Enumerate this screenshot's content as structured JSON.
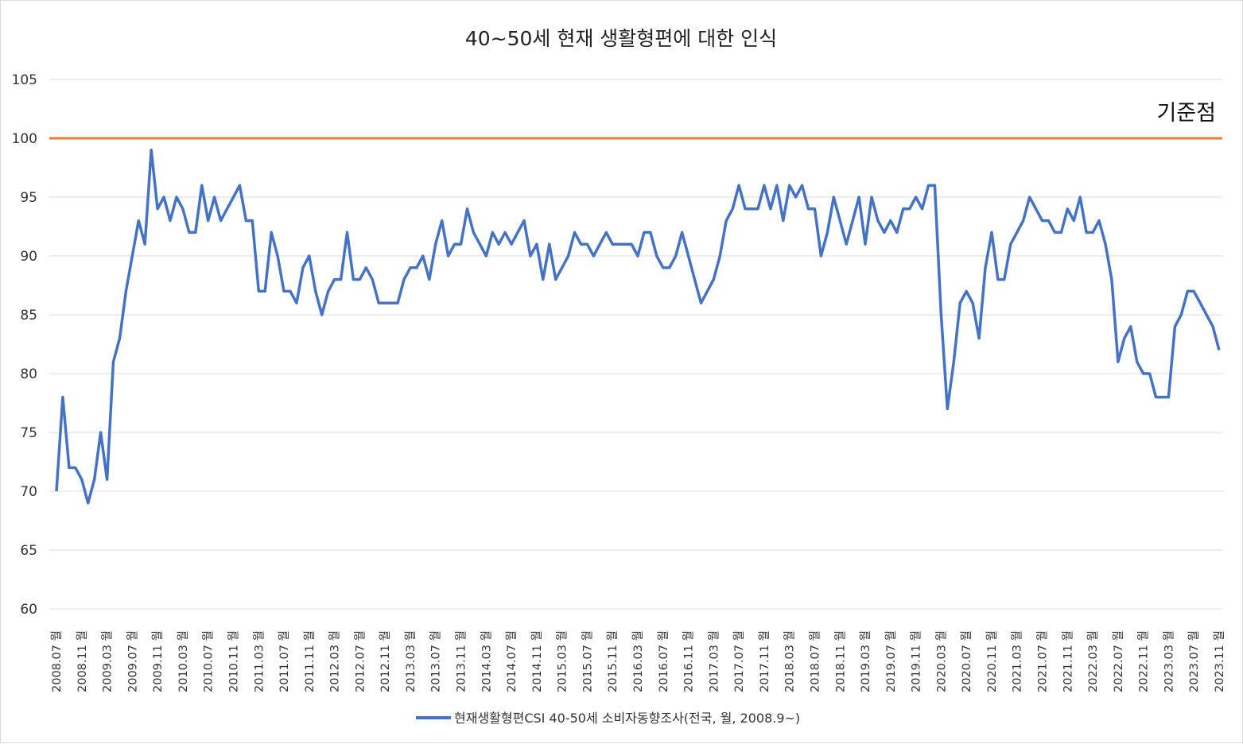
{
  "chart_data": {
    "type": "line",
    "title": "40~50세 현재 생활형편에 대한 인식",
    "ylim": [
      60,
      105
    ],
    "yticks": [
      60,
      65,
      70,
      75,
      80,
      85,
      90,
      95,
      100,
      105
    ],
    "grid": true,
    "legend_position": "bottom",
    "x_tick_labels": [
      "2008.07 월",
      "2008.11 월",
      "2009.03 월",
      "2009.07 월",
      "2009.11 월",
      "2010.03 월",
      "2010.07 월",
      "2010.11 월",
      "2011.03 월",
      "2011.07 월",
      "2011.11 월",
      "2012.03 월",
      "2012.07 월",
      "2012.11 월",
      "2013.03 월",
      "2013.07 월",
      "2013.11 월",
      "2014.03 월",
      "2014.07 월",
      "2014.11 월",
      "2015.03 월",
      "2015.07 월",
      "2015.11 월",
      "2016.03 월",
      "2016.07 월",
      "2016.11 월",
      "2017.03 월",
      "2017.07 월",
      "2017.11 월",
      "2018.03 월",
      "2018.07 월",
      "2018.11 월",
      "2019.03 월",
      "2019.07 월",
      "2019.11 월",
      "2020.03 월",
      "2020.07 월",
      "2020.11 월",
      "2021.03 월",
      "2021.07 월",
      "2021.11 월",
      "2022.03 월",
      "2022.07 월",
      "2022.11 월",
      "2023.03 월",
      "2023.07 월",
      "2023.11 월"
    ],
    "reference_line": {
      "value": 100,
      "label": "기준점",
      "color": "#ED7D31"
    },
    "series": [
      {
        "name": "현재생활형편CSI 40-50세 소비자동향조사(전국, 월, 2008.9~)",
        "color": "#4472C4",
        "values": [
          70,
          78,
          72,
          72,
          71,
          69,
          71,
          75,
          71,
          81,
          83,
          87,
          90,
          93,
          91,
          99,
          94,
          95,
          93,
          95,
          94,
          92,
          92,
          96,
          93,
          95,
          93,
          94,
          95,
          96,
          93,
          93,
          87,
          87,
          92,
          90,
          87,
          87,
          86,
          89,
          90,
          87,
          85,
          87,
          88,
          88,
          92,
          88,
          88,
          89,
          88,
          86,
          86,
          86,
          86,
          88,
          89,
          89,
          90,
          88,
          91,
          93,
          90,
          91,
          91,
          94,
          92,
          91,
          90,
          92,
          91,
          92,
          91,
          92,
          93,
          90,
          91,
          88,
          91,
          88,
          89,
          90,
          92,
          91,
          91,
          90,
          91,
          92,
          91,
          91,
          91,
          91,
          90,
          92,
          92,
          90,
          89,
          89,
          90,
          92,
          90,
          88,
          86,
          87,
          88,
          90,
          93,
          94,
          96,
          94,
          94,
          94,
          96,
          94,
          96,
          93,
          96,
          95,
          96,
          94,
          94,
          90,
          92,
          95,
          93,
          91,
          93,
          95,
          91,
          95,
          93,
          92,
          93,
          92,
          94,
          94,
          95,
          94,
          96,
          96,
          85,
          77,
          81,
          86,
          87,
          86,
          83,
          89,
          92,
          88,
          88,
          91,
          92,
          93,
          95,
          94,
          93,
          93,
          92,
          92,
          94,
          93,
          95,
          92,
          92,
          93,
          91,
          88,
          81,
          83,
          84,
          81,
          80,
          80,
          78,
          78,
          78,
          84,
          85,
          87,
          87,
          86,
          85,
          84,
          82
        ]
      }
    ]
  }
}
